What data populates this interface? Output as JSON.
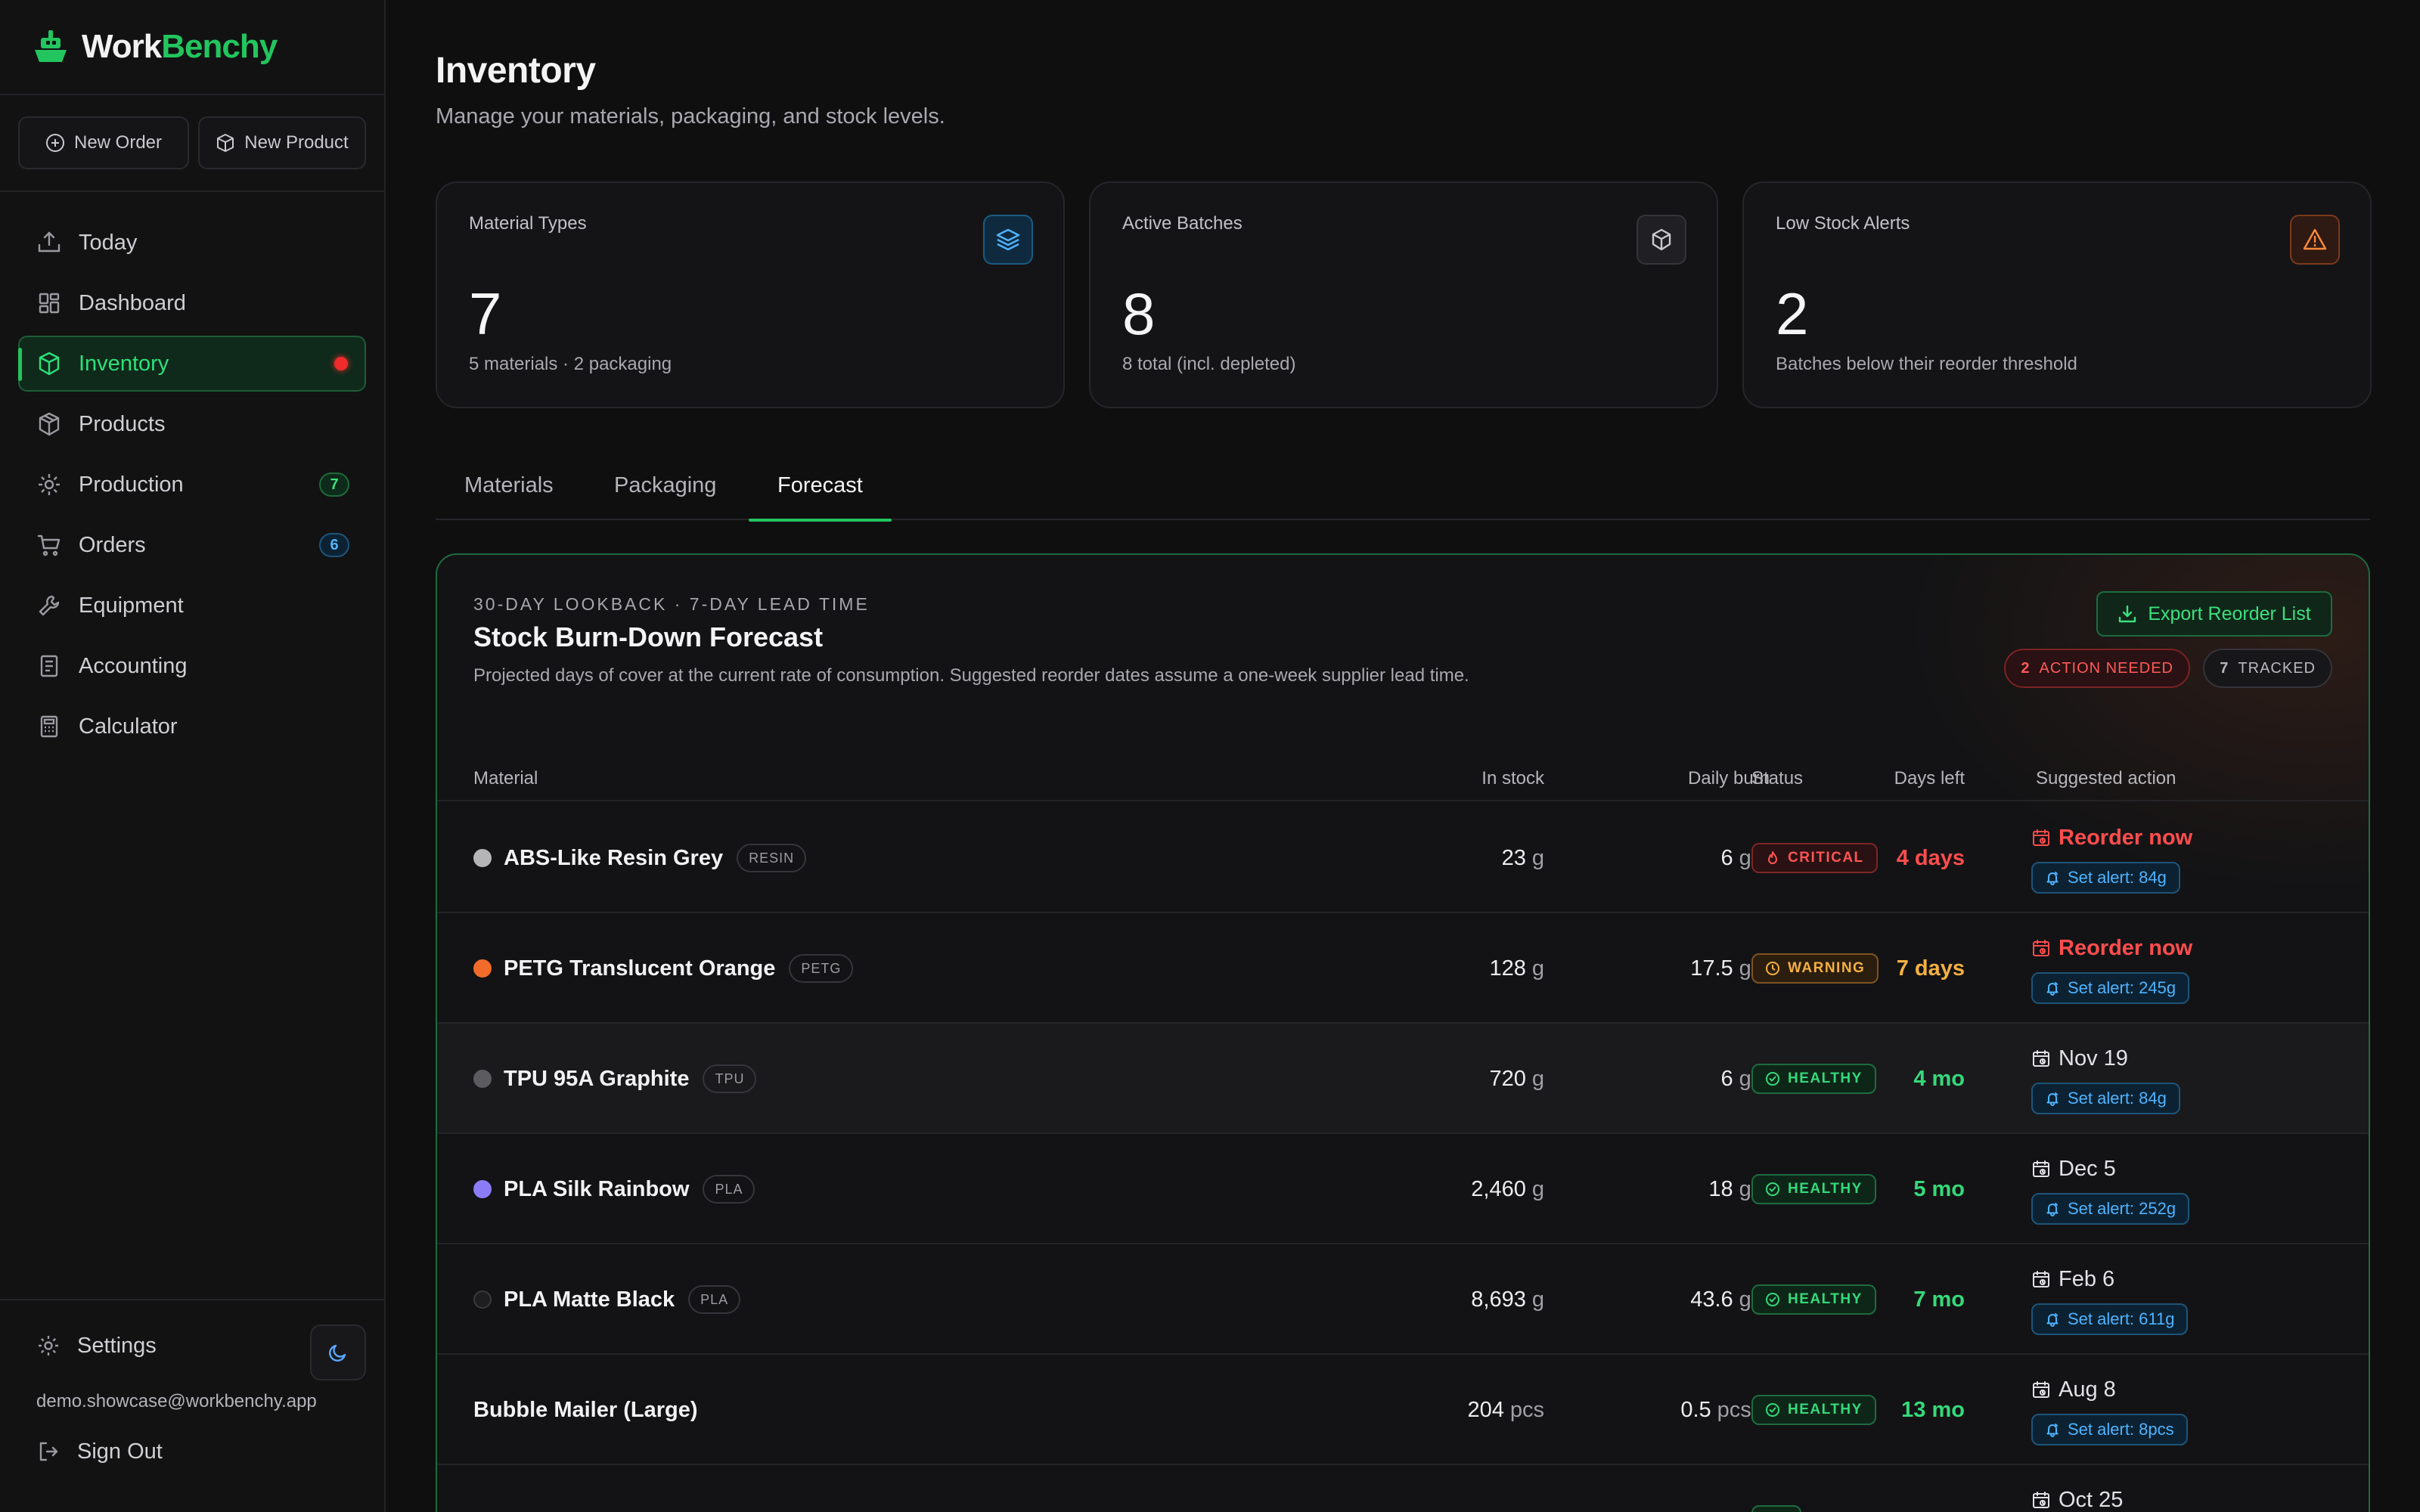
{
  "app": {
    "name_part1": "Work",
    "name_part2": "Benchy"
  },
  "quick_actions": {
    "new_order": "New Order",
    "new_product": "New Product"
  },
  "nav": [
    {
      "label": "Today",
      "icon": "upload-tray-icon"
    },
    {
      "label": "Dashboard",
      "icon": "dashboard-grid-icon"
    },
    {
      "label": "Inventory",
      "icon": "box-icon",
      "active": true,
      "alert_dot": true
    },
    {
      "label": "Products",
      "icon": "package-icon"
    },
    {
      "label": "Production",
      "icon": "cog-icon",
      "badge": "7"
    },
    {
      "label": "Orders",
      "icon": "cart-icon",
      "badge": "6"
    },
    {
      "label": "Equipment",
      "icon": "wrench-icon"
    },
    {
      "label": "Accounting",
      "icon": "ledger-icon"
    },
    {
      "label": "Calculator",
      "icon": "calculator-icon"
    }
  ],
  "sidebar_bottom": {
    "settings": "Settings",
    "email": "demo.showcase@workbenchy.app",
    "sign_out": "Sign Out"
  },
  "page": {
    "title": "Inventory",
    "subtitle": "Manage your materials, packaging, and stock levels."
  },
  "stats": [
    {
      "label": "Material Types",
      "value": "7",
      "sub": "5 materials · 2 packaging",
      "icon": "layers-icon",
      "color": "#4fb3ff"
    },
    {
      "label": "Active Batches",
      "value": "8",
      "sub": "8 total (incl. depleted)",
      "icon": "box-icon",
      "color": "#c9c9ce"
    },
    {
      "label": "Low Stock Alerts",
      "value": "2",
      "sub": "Batches below their reorder threshold",
      "icon": "warning-triangle-icon",
      "color": "#ff8a3d"
    }
  ],
  "tabs": {
    "materials": "Materials",
    "packaging": "Packaging",
    "forecast": "Forecast",
    "active": "Forecast"
  },
  "forecast": {
    "eyebrow": "30-DAY LOOKBACK · 7-DAY LEAD TIME",
    "title": "Stock Burn-Down Forecast",
    "description": "Projected days of cover at the current rate of consumption. Suggested reorder dates assume a one-week supplier lead time.",
    "export_label": "Export Reorder List",
    "action_needed_count": "2",
    "action_needed_label": "ACTION NEEDED",
    "tracked_count": "7",
    "tracked_label": "TRACKED",
    "columns": {
      "material": "Material",
      "in_stock": "In stock",
      "daily_burn": "Daily burn",
      "days_left": "Days left",
      "status": "Status",
      "suggested_action": "Suggested action"
    },
    "rows": [
      {
        "name": "ABS-Like Resin Grey",
        "tag": "RESIN",
        "color": "#b5b5b8",
        "stock": "23",
        "stock_unit": "g",
        "burn": "6",
        "burn_unit": "g/d",
        "days": "4 days",
        "days_color": "#ff4d4d",
        "status": "CRITICAL",
        "status_kind": "critical",
        "action": "Reorder now",
        "action_kind": "reorder",
        "alert": "Set alert: 84g"
      },
      {
        "name": "PETG Translucent Orange",
        "tag": "PETG",
        "color": "#f26b2a",
        "stock": "128",
        "stock_unit": "g",
        "burn": "17.5",
        "burn_unit": "g/d",
        "days": "7 days",
        "days_color": "#f5b041",
        "status": "WARNING",
        "status_kind": "warning",
        "action": "Reorder now",
        "action_kind": "reorder",
        "alert": "Set alert: 245g"
      },
      {
        "name": "TPU 95A Graphite",
        "tag": "TPU",
        "color": "#5b5b60",
        "stock": "720",
        "stock_unit": "g",
        "burn": "6",
        "burn_unit": "g/d",
        "days": "4 mo",
        "days_color": "#35d97a",
        "status": "HEALTHY",
        "status_kind": "healthy",
        "action": "Nov 19",
        "action_kind": "date",
        "alert": "Set alert: 84g",
        "highlight": true
      },
      {
        "name": "PLA Silk Rainbow",
        "tag": "PLA",
        "color": "#8b7cf6",
        "stock": "2,460",
        "stock_unit": "g",
        "burn": "18",
        "burn_unit": "g/d",
        "days": "5 mo",
        "days_color": "#35d97a",
        "status": "HEALTHY",
        "status_kind": "healthy",
        "action": "Dec 5",
        "action_kind": "date",
        "alert": "Set alert: 252g"
      },
      {
        "name": "PLA Matte Black",
        "tag": "PLA",
        "color": "#1e1e20",
        "stock": "8,693",
        "stock_unit": "g",
        "burn": "43.6",
        "burn_unit": "g/d",
        "days": "7 mo",
        "days_color": "#35d97a",
        "status": "HEALTHY",
        "status_kind": "healthy",
        "action": "Feb 6",
        "action_kind": "date",
        "alert": "Set alert: 611g"
      },
      {
        "name": "Bubble Mailer (Large)",
        "tag": "",
        "color": "",
        "stock": "204",
        "stock_unit": "pcs",
        "burn": "0.5",
        "burn_unit": "pcs/d",
        "days": "13 mo",
        "days_color": "#35d97a",
        "status": "HEALTHY",
        "status_kind": "healthy",
        "action": "Aug 8",
        "action_kind": "date",
        "alert": "Set alert: 8pcs"
      },
      {
        "name": "",
        "tag": "",
        "color": "",
        "stock": "",
        "stock_unit": "",
        "burn": "",
        "burn_unit": "",
        "days": "",
        "days_color": "#35d97a",
        "status": "",
        "status_kind": "healthy",
        "action": "Oct 25",
        "action_kind": "date",
        "alert": ""
      }
    ]
  }
}
